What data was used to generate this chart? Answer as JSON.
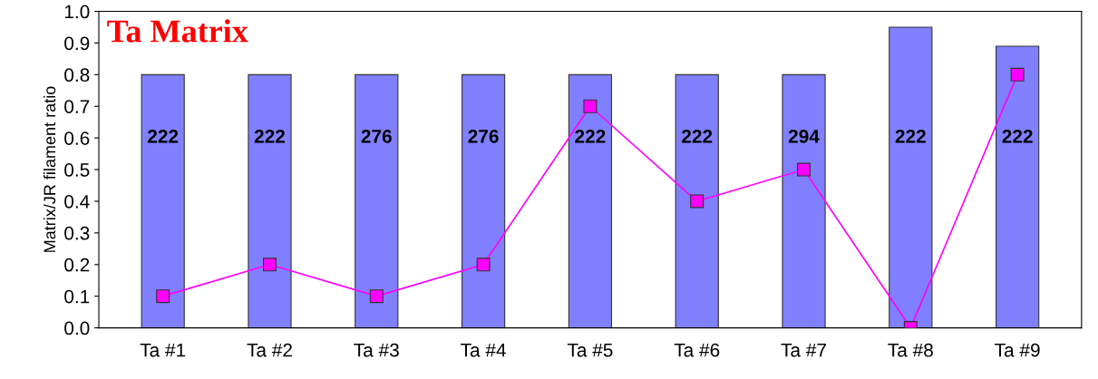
{
  "chart_data": {
    "type": "bar",
    "title": "Ta Matrix",
    "ylabel": "Matrix/JR filament ratio",
    "categories": [
      "Ta #1",
      "Ta #2",
      "Ta #3",
      "Ta #4",
      "Ta #5",
      "Ta #6",
      "Ta #7",
      "Ta #8",
      "Ta #9"
    ],
    "series": [
      {
        "color": "#8080ff",
        "values": [
          0.8,
          0.8,
          0.8,
          0.8,
          0.8,
          0.8,
          0.8,
          0.95,
          0.89
        ]
      },
      {
        "type": "line",
        "color": "#ff00ff",
        "marker": "square",
        "values": [
          0.1,
          0.2,
          0.1,
          0.2,
          0.7,
          0.4,
          0.5,
          0.0,
          0.8
        ]
      }
    ],
    "ylim": [
      0,
      1.0
    ],
    "yticks": [
      {
        "value": 0,
        "label": "0.0"
      },
      {
        "value": 0.1,
        "label": "0.1"
      },
      {
        "value": 0.2,
        "label": "0.2"
      },
      {
        "value": 0.3,
        "label": "0.3"
      },
      {
        "value": 0.4,
        "label": "0.4"
      },
      {
        "value": 0.5,
        "label": "0.5"
      },
      {
        "value": 0.6,
        "label": "0.6"
      },
      {
        "value": 0.7,
        "label": "0.7"
      },
      {
        "value": 0.8,
        "label": "0.8"
      },
      {
        "value": 0.9,
        "label": "0.9"
      },
      {
        "value": 1.0,
        "label": "1.0"
      }
    ],
    "grid": false,
    "annotations": [
      "222",
      "222",
      "276",
      "276",
      "222",
      "222",
      "294",
      "222",
      "222"
    ]
  }
}
